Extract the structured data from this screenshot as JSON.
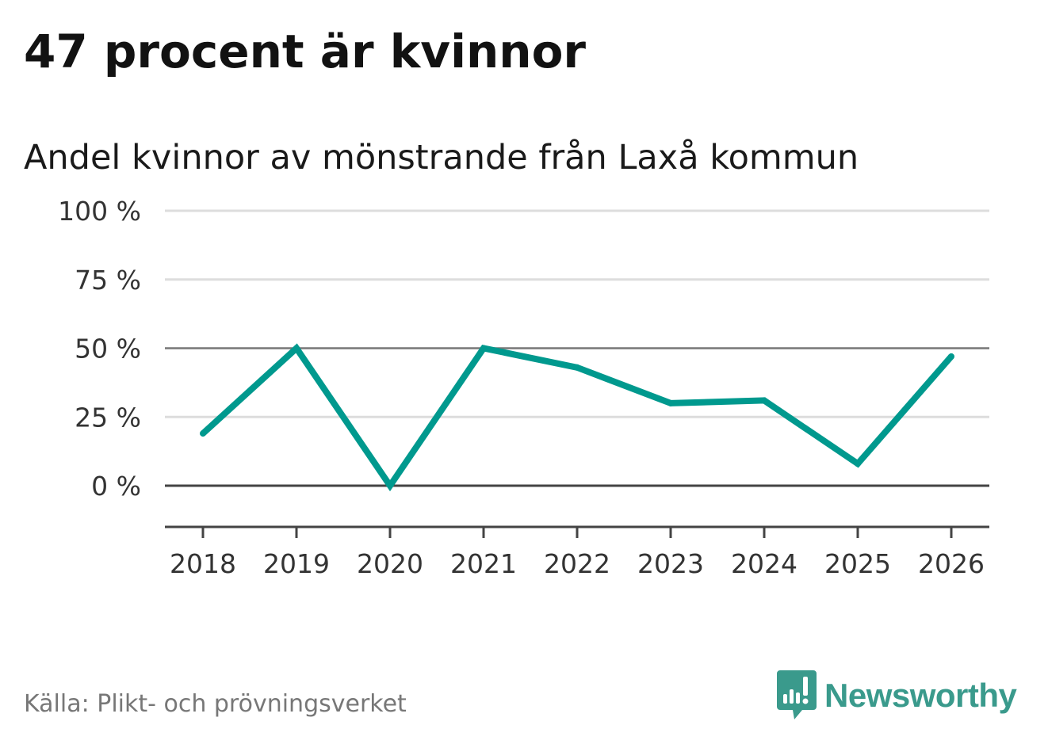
{
  "header": {
    "title": "47 procent är kvinnor",
    "subtitle": "Andel kvinnor av mönstrande från Laxå kommun"
  },
  "footer": {
    "source": "Källa: Plikt- och prövningsverket",
    "brand": "Newsworthy"
  },
  "colors": {
    "line": "#00998e",
    "brand": "#3a9a8c",
    "gridline": "#dddddd",
    "reference_line": "#777777",
    "zero_line": "#444444"
  },
  "chart_data": {
    "type": "line",
    "title": "47 procent är kvinnor",
    "subtitle": "Andel kvinnor av mönstrande från Laxå kommun",
    "xlabel": "",
    "ylabel": "",
    "categories": [
      "2018",
      "2019",
      "2020",
      "2021",
      "2022",
      "2023",
      "2024",
      "2025",
      "2026"
    ],
    "series": [
      {
        "name": "Andel kvinnor",
        "values": [
          19,
          50,
          0,
          50,
          43,
          30,
          31,
          8,
          47
        ]
      }
    ],
    "ylim": [
      -15,
      100
    ],
    "yticks": [
      0,
      25,
      50,
      75,
      100
    ],
    "ytick_labels": [
      "0 %",
      "25 %",
      "50 %",
      "75 %",
      "100 %"
    ],
    "reference_line": 50,
    "grid": true,
    "legend": "none"
  }
}
